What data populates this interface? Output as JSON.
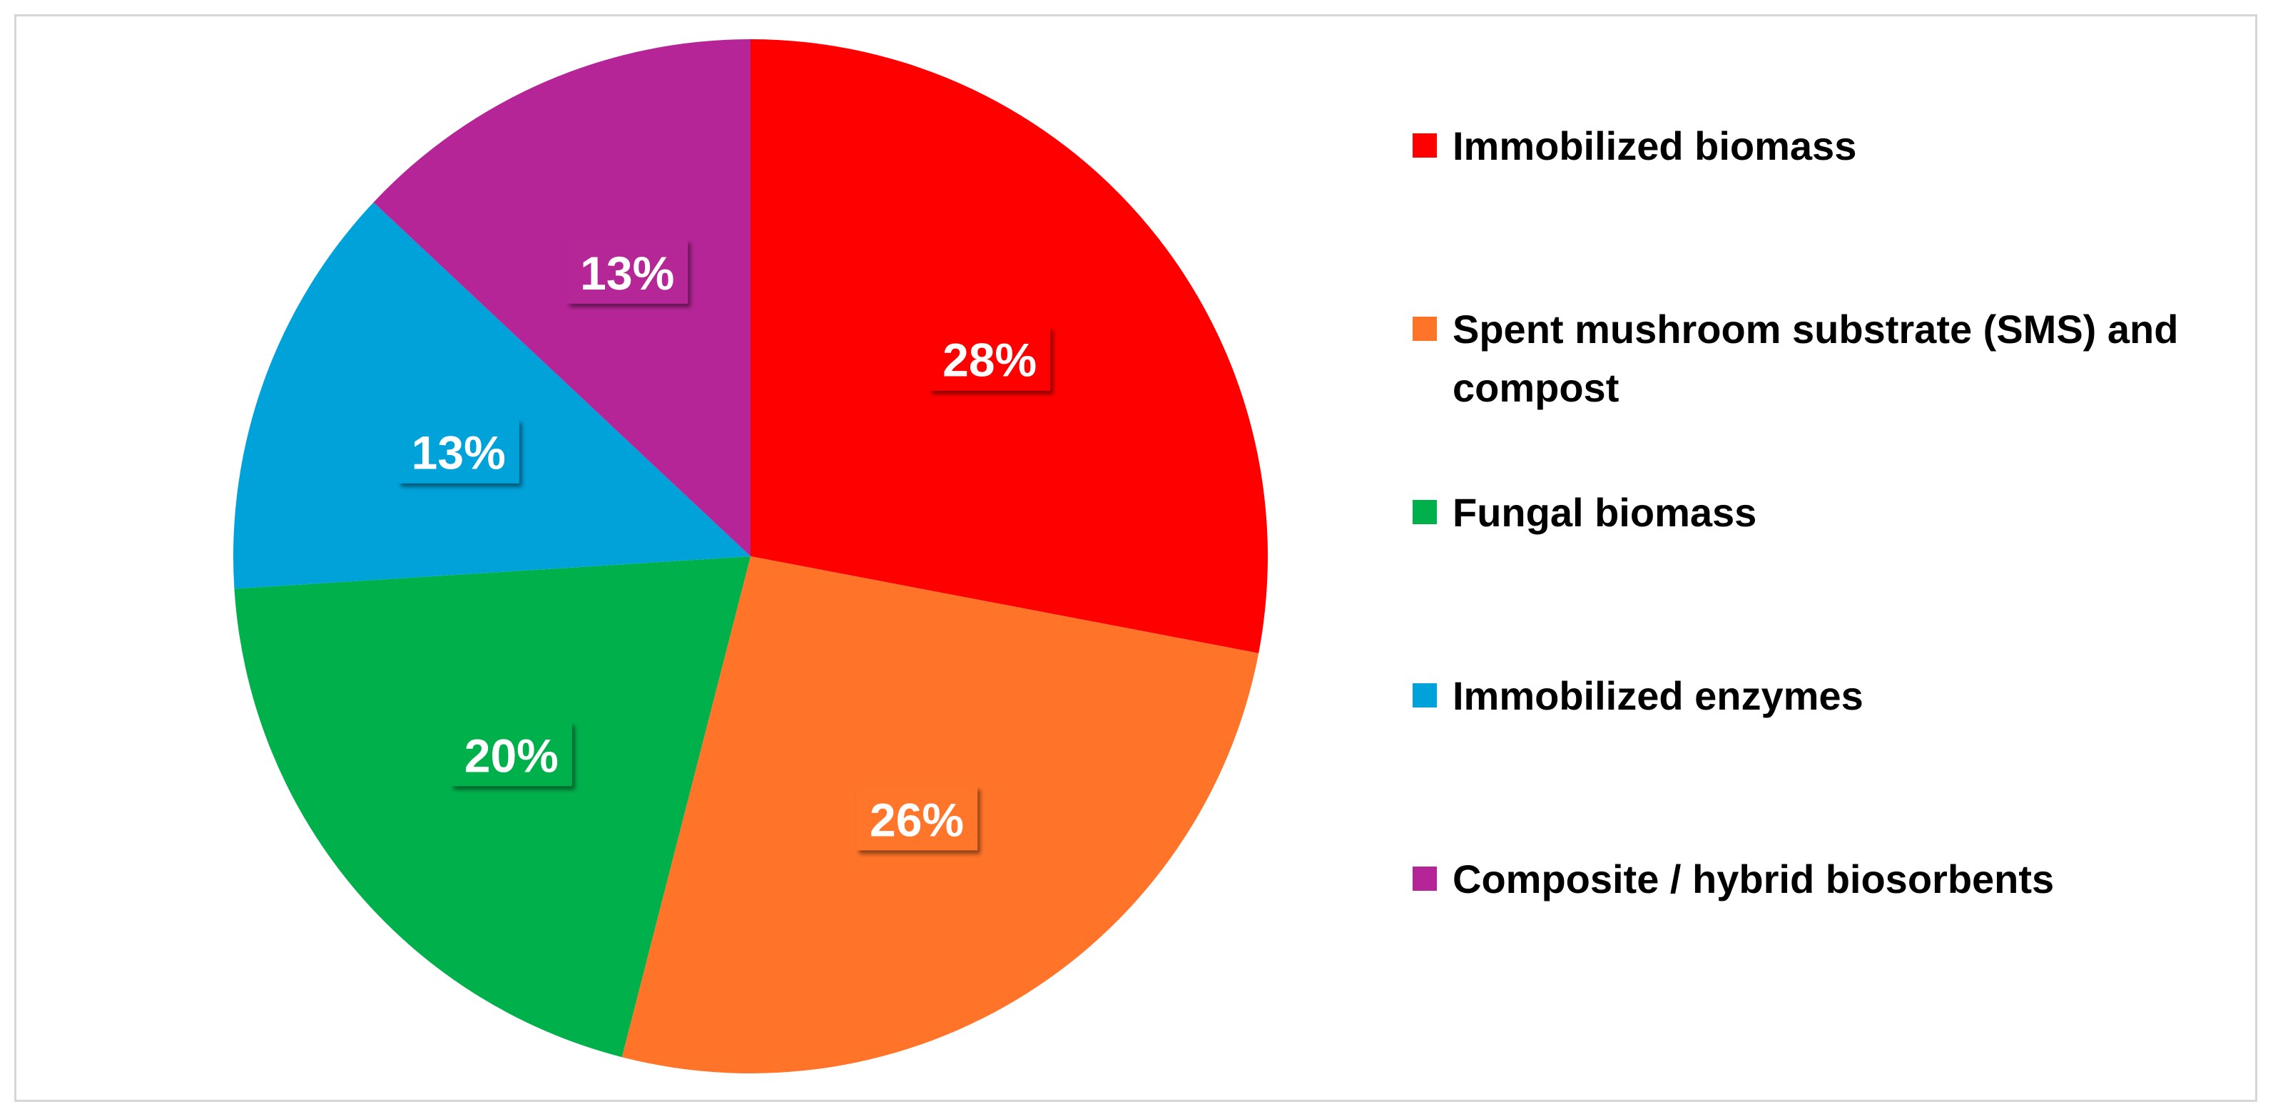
{
  "chart_data": {
    "type": "pie",
    "title": "",
    "start_angle_deg": 0,
    "direction": "clockwise",
    "legend_position": "right",
    "slices": [
      {
        "label": "Immobilized biomass",
        "value": 28,
        "display": "28%",
        "color": "#ff0000",
        "legend_lines": [
          "Immobilized biomass"
        ]
      },
      {
        "label": "Spent mushroom substrate (SMS) and compost",
        "value": 26,
        "display": "26%",
        "color": "#ff7429",
        "legend_lines": [
          "Spent mushroom substrate (SMS) and",
          "compost"
        ]
      },
      {
        "label": "Fungal biomass",
        "value": 20,
        "display": "20%",
        "color": "#00b04b",
        "legend_lines": [
          "Fungal biomass"
        ]
      },
      {
        "label": "Immobilized enzymes",
        "value": 13,
        "display": "13%",
        "color": "#00a2da",
        "legend_lines": [
          "Immobilized enzymes"
        ]
      },
      {
        "label": "Composite / hybrid biosorbents",
        "value": 13,
        "display": "13%",
        "color": "#b52597",
        "legend_lines": [
          "Composite / hybrid biosorbents"
        ]
      }
    ]
  }
}
